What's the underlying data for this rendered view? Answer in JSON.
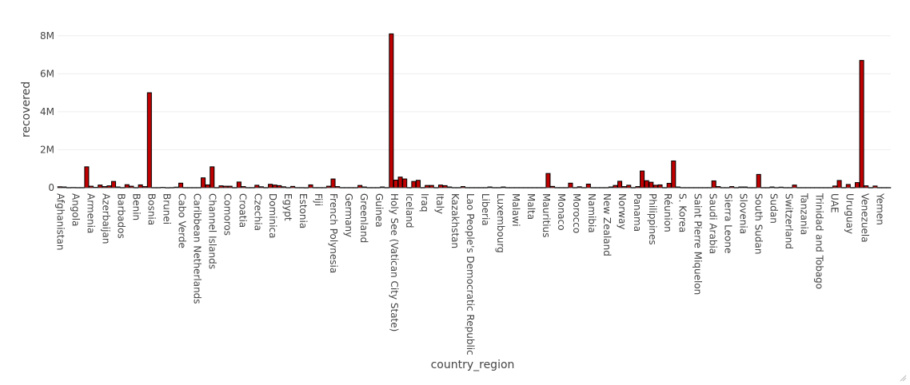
{
  "chart_data": {
    "type": "bar",
    "xlabel": "country_region",
    "ylabel": "recovered",
    "ylim": [
      0,
      8200000
    ],
    "y_ticks": [
      0,
      2000000,
      4000000,
      6000000,
      8000000
    ],
    "y_tick_labels": [
      "0",
      "2M",
      "4M",
      "6M",
      "8M"
    ],
    "grid": true,
    "bar_color": "#c00000",
    "bar_outline": "#000000",
    "x_tick_labels": [
      "Afghanistan",
      "Angola",
      "Armenia",
      "Azerbaijan",
      "Barbados",
      "Benin",
      "Bosnia",
      "Brunei",
      "Cabo Verde",
      "Caribbean Netherlands",
      "Channel Islands",
      "Comoros",
      "Croatia",
      "Czechia",
      "Dominica",
      "Egypt",
      "Estonia",
      "Fiji",
      "French Polynesia",
      "Germany",
      "Greenland",
      "Guinea",
      "Holy See (Vatican City State)",
      "Iceland",
      "Iraq",
      "Italy",
      "Kazakhstan",
      "Lao People's Democratic Republic",
      "Liberia",
      "Luxembourg",
      "Malawi",
      "Malta",
      "Mauritius",
      "Monaco",
      "Morocco",
      "Namibia",
      "New Zealand",
      "Norway",
      "Panama",
      "Philippines",
      "Réunion",
      "S. Korea",
      "Saint Pierre Miquelon",
      "Saudi Arabia",
      "Sierra Leone",
      "Slovenia",
      "South Sudan",
      "Sudan",
      "Switzerland",
      "Tanzania",
      "Trinidad and Tobago",
      "UAE",
      "Uruguay",
      "Venezuela",
      "Yemen"
    ],
    "values": [
      50000,
      40000,
      10000,
      15000,
      10000,
      10000,
      1100000,
      80000,
      20000,
      140000,
      60000,
      100000,
      330000,
      40000,
      10000,
      160000,
      80000,
      10000,
      150000,
      60000,
      5000100,
      10000,
      10000,
      20000,
      5000,
      10000,
      30000,
      240000,
      10000,
      10000,
      10000,
      10000,
      520000,
      150000,
      1100000,
      10000,
      100000,
      80000,
      80000,
      10000,
      300000,
      60000,
      10000,
      10000,
      130000,
      50000,
      10000,
      180000,
      140000,
      110000,
      50000,
      10000,
      70000,
      10000,
      10000,
      5000,
      150000,
      10000,
      10000,
      10000,
      80000,
      460000,
      60000,
      10000,
      10000,
      10000,
      10000,
      120000,
      40000,
      10000,
      10000,
      10000,
      40000,
      10000,
      8100000,
      400000,
      560000,
      460000,
      10000,
      330000,
      390000,
      10000,
      120000,
      120000,
      10000,
      140000,
      110000,
      40000,
      10000,
      10000,
      60000,
      10000,
      10000,
      10000,
      10000,
      10000,
      40000,
      10000,
      10000,
      40000,
      10000,
      10000,
      10000,
      10000,
      10000,
      10000,
      10000,
      10000,
      10000,
      750000,
      70000,
      10000,
      10000,
      10000,
      240000,
      10000,
      50000,
      10000,
      190000,
      10000,
      10000,
      10000,
      10000,
      40000,
      120000,
      340000,
      60000,
      130000,
      10000,
      60000,
      880000,
      370000,
      290000,
      130000,
      150000,
      10000,
      230000,
      1410000,
      40000,
      10000,
      10000,
      10000,
      10000,
      10000,
      10000,
      10000,
      360000,
      60000,
      10000,
      10000,
      60000,
      10000,
      40000,
      40000,
      10000,
      10000,
      700000,
      10000,
      10000,
      40000,
      10000,
      30000,
      10000,
      10000,
      140000,
      10000,
      10000,
      10000,
      10000,
      10000,
      10000,
      10000,
      10000,
      90000,
      380000,
      10000,
      170000,
      10000,
      270000,
      6700000,
      100000,
      10000,
      90000,
      10000,
      10000,
      10000
    ]
  }
}
